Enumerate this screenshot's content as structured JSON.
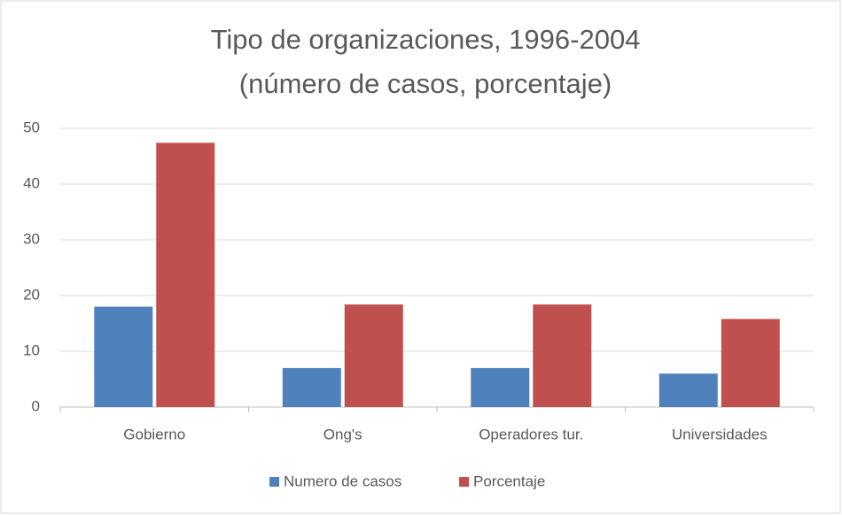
{
  "chart_data": {
    "type": "bar",
    "title": "Tipo de organizaciones, 1996-2004",
    "subtitle": "(número de casos, porcentaje)",
    "categories": [
      "Gobierno",
      "Ong's",
      "Operadores tur.",
      "Universidades"
    ],
    "series": [
      {
        "name": "Numero de casos",
        "color": "#4f81bd",
        "values": [
          18,
          7,
          7,
          6
        ]
      },
      {
        "name": "Porcentaje",
        "color": "#c0504d",
        "values": [
          47.4,
          18.4,
          18.4,
          15.8
        ]
      }
    ],
    "ylim": [
      0,
      50
    ],
    "yticks": [
      0,
      10,
      20,
      30,
      40,
      50
    ],
    "grid": true,
    "legend": "bottom"
  }
}
